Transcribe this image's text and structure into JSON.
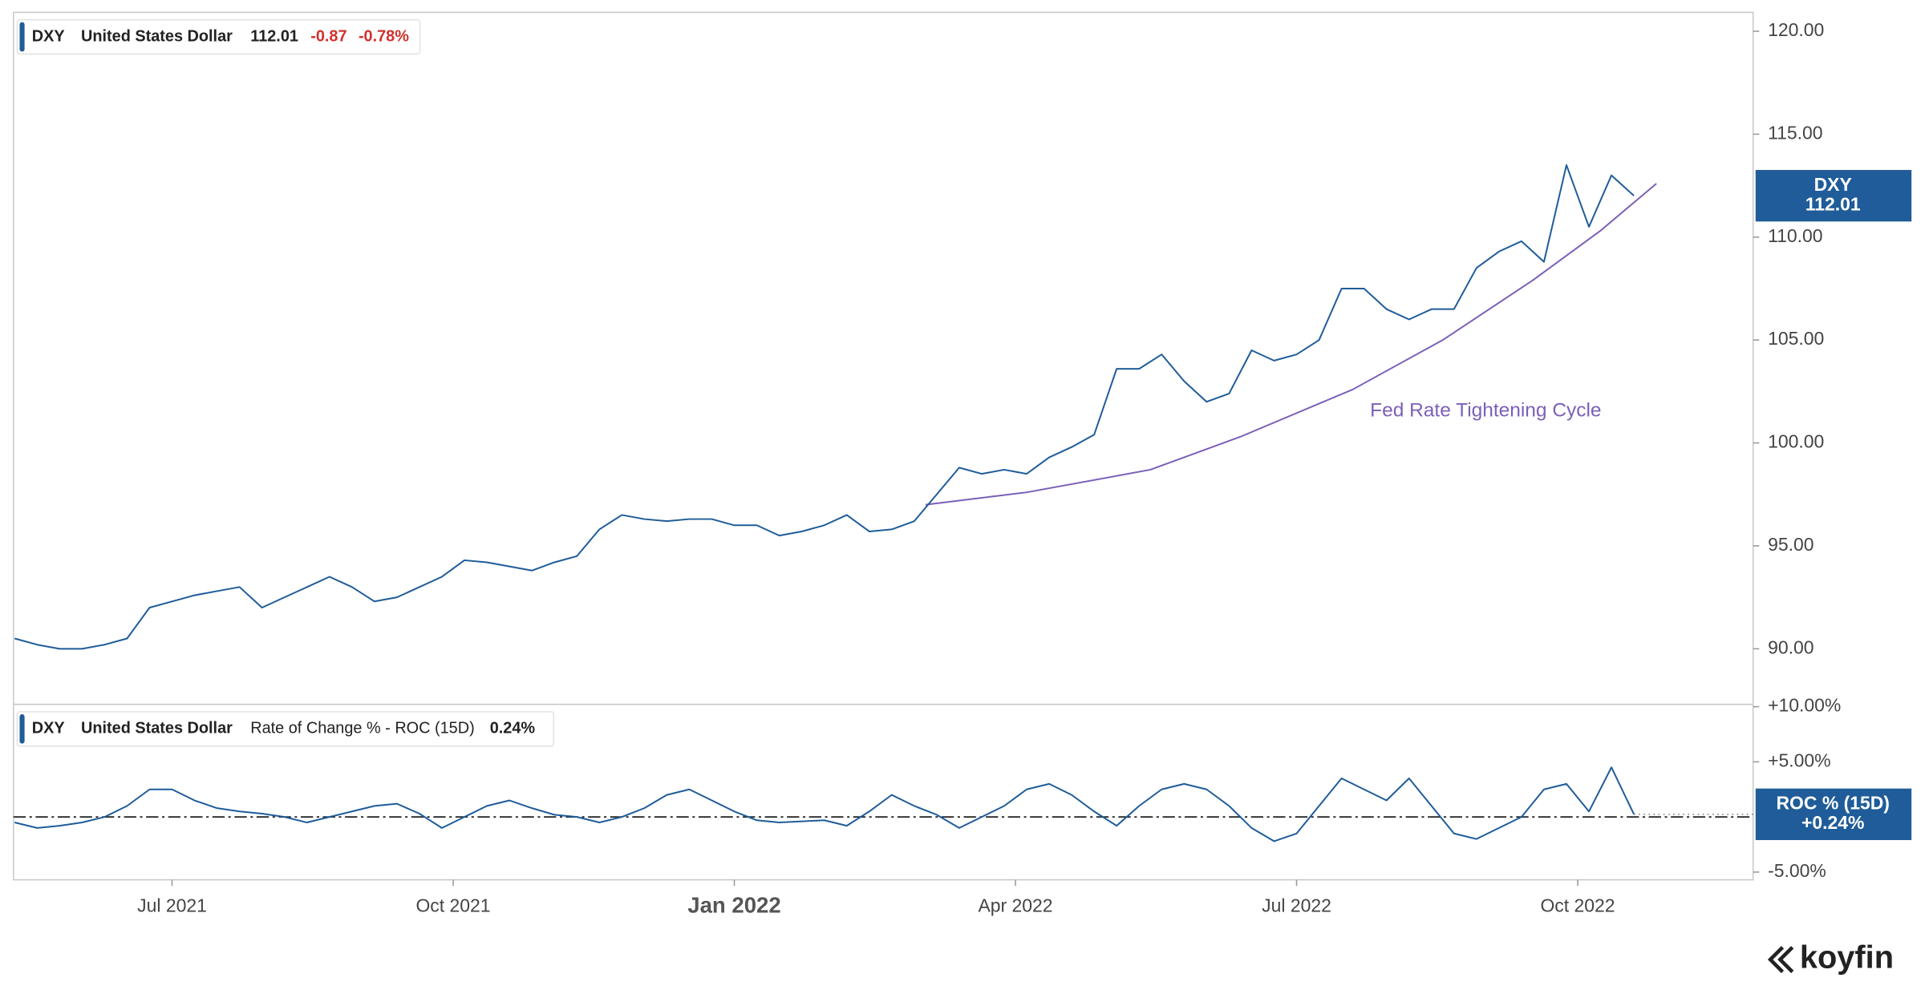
{
  "chart_data": [
    {
      "type": "line",
      "legend": {
        "symbol": "DXY",
        "name": "United States Dollar",
        "last": "112.01",
        "change": "-0.87",
        "change_pct": "-0.78%"
      },
      "badge": {
        "symbol": "DXY",
        "value": "112.01"
      },
      "x": [
        2021.36,
        2021.38,
        2021.4,
        2021.42,
        2021.44,
        2021.46,
        2021.48,
        2021.5,
        2021.52,
        2021.54,
        2021.56,
        2021.58,
        2021.6,
        2021.62,
        2021.64,
        2021.66,
        2021.68,
        2021.7,
        2021.72,
        2021.74,
        2021.76,
        2021.78,
        2021.8,
        2021.82,
        2021.84,
        2021.86,
        2021.88,
        2021.9,
        2021.92,
        2021.94,
        2021.96,
        2021.98,
        2022.0,
        2022.02,
        2022.04,
        2022.06,
        2022.08,
        2022.1,
        2022.12,
        2022.14,
        2022.16,
        2022.18,
        2022.2,
        2022.22,
        2022.24,
        2022.26,
        2022.28,
        2022.3,
        2022.32,
        2022.34,
        2022.36,
        2022.38,
        2022.4,
        2022.42,
        2022.44,
        2022.46,
        2022.48,
        2022.5,
        2022.52,
        2022.54,
        2022.56,
        2022.58,
        2022.6,
        2022.62,
        2022.64,
        2022.66,
        2022.68,
        2022.7,
        2022.72,
        2022.74,
        2022.76,
        2022.78,
        2022.8
      ],
      "series": [
        {
          "name": "DXY",
          "color": "#1f5c99",
          "values": [
            90.5,
            90.2,
            90.0,
            90.0,
            90.2,
            90.5,
            92.0,
            92.3,
            92.6,
            92.8,
            93.0,
            92.0,
            92.5,
            93.0,
            93.5,
            93.0,
            92.3,
            92.5,
            93.0,
            93.5,
            94.3,
            94.2,
            94.0,
            93.8,
            94.2,
            94.5,
            95.8,
            96.5,
            96.3,
            96.2,
            96.3,
            96.3,
            96.0,
            96.0,
            95.5,
            95.7,
            96.0,
            96.5,
            95.7,
            95.8,
            96.2,
            97.5,
            98.8,
            98.5,
            98.7,
            98.5,
            99.3,
            99.8,
            100.4,
            103.6,
            103.6,
            104.3,
            103.0,
            102.0,
            102.4,
            104.5,
            104.0,
            104.3,
            105.0,
            107.5,
            107.5,
            106.5,
            106.0,
            106.5,
            106.5,
            108.5,
            109.3,
            109.8,
            108.8,
            113.5,
            110.5,
            113.0,
            112.01
          ]
        }
      ],
      "annotation": {
        "text": "Fed Rate Tightening Cycle",
        "color": "#7b5fb8",
        "x": [
          2022.17,
          2022.26,
          2022.37,
          2022.45,
          2022.55,
          2022.63,
          2022.71,
          2022.77,
          2022.82
        ],
        "values": [
          97.0,
          97.6,
          98.7,
          100.3,
          102.6,
          105.0,
          107.9,
          110.3,
          112.6
        ]
      },
      "xlim": [
        2021.359,
        2022.906
      ],
      "ylim": [
        87.3,
        120.8
      ],
      "yticks": [
        {
          "value": 90,
          "label": "90.00"
        },
        {
          "value": 95,
          "label": "95.00"
        },
        {
          "value": 100,
          "label": "100.00"
        },
        {
          "value": 105,
          "label": "105.00"
        },
        {
          "value": 110,
          "label": "110.00"
        },
        {
          "value": 115,
          "label": "115.00"
        },
        {
          "value": 120,
          "label": "120.00"
        }
      ]
    },
    {
      "type": "line",
      "legend": {
        "symbol": "DXY",
        "name": "United States Dollar",
        "indicator": "Rate of Change % - ROC (15D)",
        "last": "0.24%"
      },
      "badge": {
        "symbol": "ROC % (15D)",
        "value": "+0.24%"
      },
      "x": [
        2021.36,
        2021.38,
        2021.4,
        2021.42,
        2021.44,
        2021.46,
        2021.48,
        2021.5,
        2021.52,
        2021.54,
        2021.56,
        2021.58,
        2021.6,
        2021.62,
        2021.64,
        2021.66,
        2021.68,
        2021.7,
        2021.72,
        2021.74,
        2021.76,
        2021.78,
        2021.8,
        2021.82,
        2021.84,
        2021.86,
        2021.88,
        2021.9,
        2021.92,
        2021.94,
        2021.96,
        2021.98,
        2022.0,
        2022.02,
        2022.04,
        2022.06,
        2022.08,
        2022.1,
        2022.12,
        2022.14,
        2022.16,
        2022.18,
        2022.2,
        2022.22,
        2022.24,
        2022.26,
        2022.28,
        2022.3,
        2022.32,
        2022.34,
        2022.36,
        2022.38,
        2022.4,
        2022.42,
        2022.44,
        2022.46,
        2022.48,
        2022.5,
        2022.52,
        2022.54,
        2022.56,
        2022.58,
        2022.6,
        2022.62,
        2022.64,
        2022.66,
        2022.68,
        2022.7,
        2022.72,
        2022.74,
        2022.76,
        2022.78,
        2022.8
      ],
      "series": [
        {
          "name": "ROC % (15D)",
          "color": "#1f5c99",
          "values": [
            -0.5,
            -1,
            -0.8,
            -0.5,
            0,
            1,
            2.5,
            2.5,
            1.5,
            0.8,
            0.5,
            0.3,
            0,
            -0.5,
            0,
            0.5,
            1,
            1.2,
            0.3,
            -1,
            0,
            1,
            1.5,
            0.8,
            0.2,
            0,
            -0.5,
            0,
            0.8,
            2,
            2.5,
            1.5,
            0.5,
            -0.3,
            -0.5,
            -0.4,
            -0.3,
            -0.8,
            0.5,
            2,
            1,
            0.2,
            -1,
            0,
            1,
            2.5,
            3,
            2,
            0.5,
            -0.8,
            1,
            2.5,
            3,
            2.5,
            1,
            -1,
            -2.2,
            -1.5,
            1,
            3.5,
            2.5,
            1.5,
            3.5,
            1,
            -1.5,
            -2,
            -1,
            0,
            2.5,
            3,
            0.5,
            4.5,
            0.24
          ]
        }
      ],
      "reference_line": 0,
      "xlim": [
        2021.359,
        2022.906
      ],
      "xticks": [
        {
          "value": 2021.5,
          "label": "Jul 2021"
        },
        {
          "value": 2021.75,
          "label": "Oct 2021"
        },
        {
          "value": 2022.0,
          "label": "Jan 2022"
        },
        {
          "value": 2022.25,
          "label": "Apr 2022"
        },
        {
          "value": 2022.5,
          "label": "Jul 2022"
        },
        {
          "value": 2022.75,
          "label": "Oct 2022"
        }
      ],
      "ylim": [
        -5.7,
        10.1
      ],
      "yticks": [
        {
          "value": 10,
          "label": "+10.00%"
        },
        {
          "value": 5,
          "label": "+5.00%"
        },
        {
          "value": -5,
          "label": "-5.00%"
        }
      ]
    }
  ]
}
